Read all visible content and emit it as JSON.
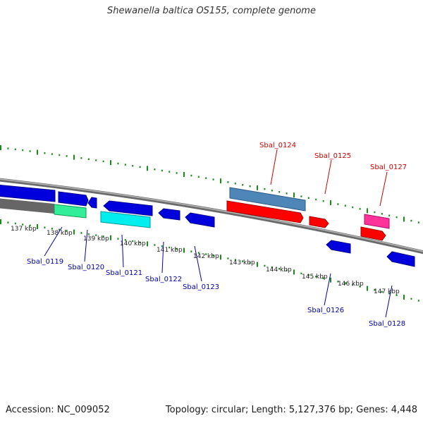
{
  "title": "Shewanella baltica OS155, complete genome",
  "footer": {
    "accession": "Accession: NC_009052",
    "summary": "Topology: circular; Length: 5,127,376 bp; Genes: 4,448"
  },
  "colors": {
    "backbone": "#8a8a8a",
    "tick_dots": "#1a8a1a",
    "forward_label": "#cc0000",
    "reverse_label": "#0000aa",
    "strand_forward": "#ff0000",
    "strand_reverse": "#0000ee"
  },
  "scale_labels": [
    "137 kbp",
    "138 kbp",
    "139 kbp",
    "140 kbp",
    "141 kbp",
    "142 kbp",
    "143 kbp",
    "144 kbp",
    "145 kbp",
    "146 kbp",
    "147 kbp"
  ],
  "genes": [
    {
      "id": "Sbal_0119",
      "strand": "reverse",
      "color": "#0000aa"
    },
    {
      "id": "Sbal_0120",
      "strand": "reverse",
      "color": "#0000aa"
    },
    {
      "id": "Sbal_0121",
      "strand": "reverse",
      "color": "#0000aa"
    },
    {
      "id": "Sbal_0122",
      "strand": "reverse",
      "color": "#0000aa"
    },
    {
      "id": "Sbal_0123",
      "strand": "reverse",
      "color": "#0000aa"
    },
    {
      "id": "Sbal_0124",
      "strand": "forward",
      "color": "#cc0000"
    },
    {
      "id": "Sbal_0125",
      "strand": "forward",
      "color": "#cc0000"
    },
    {
      "id": "Sbal_0126",
      "strand": "reverse",
      "color": "#0000aa"
    },
    {
      "id": "Sbal_0127",
      "strand": "forward",
      "color": "#cc0000"
    },
    {
      "id": "Sbal_0128",
      "strand": "reverse",
      "color": "#0000aa"
    }
  ]
}
